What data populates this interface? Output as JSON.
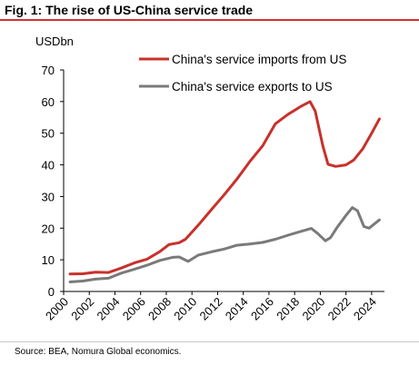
{
  "figure": {
    "title": "Fig. 1: The rise of US-China service trade",
    "source": "Source: BEA, Nomura Global economics."
  },
  "chart_data": {
    "type": "line",
    "title": "Fig. 1: The rise of US-China service trade",
    "ylabel": "USDbn",
    "xlabel": "",
    "ylim": [
      0,
      70
    ],
    "yticks": [
      0,
      10,
      20,
      30,
      40,
      50,
      60,
      70
    ],
    "xlim": [
      2000,
      2025
    ],
    "xticks": [
      2000,
      2002,
      2004,
      2006,
      2008,
      2010,
      2012,
      2014,
      2016,
      2018,
      2020,
      2022,
      2024
    ],
    "grid": false,
    "legend_position": "top",
    "series": [
      {
        "name": "China's service imports from US",
        "color": "#c8312a",
        "points": [
          [
            2000.5,
            5.5
          ],
          [
            2001.5,
            5.6
          ],
          [
            2002.5,
            6.1
          ],
          [
            2003.5,
            6.0
          ],
          [
            2004.5,
            7.4
          ],
          [
            2005.5,
            9.0
          ],
          [
            2006.5,
            10.2
          ],
          [
            2007.5,
            12.6
          ],
          [
            2008.2,
            14.8
          ],
          [
            2009,
            15.4
          ],
          [
            2009.5,
            16.5
          ],
          [
            2010.5,
            21.0
          ],
          [
            2011.5,
            25.8
          ],
          [
            2012.5,
            30.5
          ],
          [
            2013.5,
            35.5
          ],
          [
            2014.5,
            41.0
          ],
          [
            2015.5,
            46.0
          ],
          [
            2016.5,
            53.0
          ],
          [
            2017.5,
            56.0
          ],
          [
            2018.5,
            58.5
          ],
          [
            2019.2,
            60.0
          ],
          [
            2019.6,
            57.0
          ],
          [
            2020.2,
            46.0
          ],
          [
            2020.6,
            40.2
          ],
          [
            2021.2,
            39.5
          ],
          [
            2022,
            40.0
          ],
          [
            2022.6,
            41.5
          ],
          [
            2023.3,
            45.0
          ],
          [
            2024,
            50.0
          ],
          [
            2024.6,
            54.5
          ]
        ]
      },
      {
        "name": "China's service exports to US",
        "color": "#7a7a7a",
        "points": [
          [
            2000.5,
            3.0
          ],
          [
            2001.5,
            3.3
          ],
          [
            2002.5,
            3.9
          ],
          [
            2003.5,
            4.2
          ],
          [
            2004.5,
            5.8
          ],
          [
            2005.5,
            7.0
          ],
          [
            2006.5,
            8.3
          ],
          [
            2007.5,
            9.8
          ],
          [
            2008.5,
            10.8
          ],
          [
            2009,
            10.9
          ],
          [
            2009.7,
            9.5
          ],
          [
            2010.5,
            11.5
          ],
          [
            2011.5,
            12.5
          ],
          [
            2012.5,
            13.4
          ],
          [
            2013.5,
            14.6
          ],
          [
            2014.5,
            15.0
          ],
          [
            2015.5,
            15.5
          ],
          [
            2016.5,
            16.5
          ],
          [
            2017.5,
            17.8
          ],
          [
            2018.5,
            19.0
          ],
          [
            2019.3,
            19.9
          ],
          [
            2019.8,
            18.3
          ],
          [
            2020.4,
            16.0
          ],
          [
            2020.8,
            17.0
          ],
          [
            2021.3,
            20.2
          ],
          [
            2022.0,
            24.0
          ],
          [
            2022.5,
            26.5
          ],
          [
            2022.9,
            25.5
          ],
          [
            2023.4,
            20.5
          ],
          [
            2023.8,
            20.0
          ],
          [
            2024.6,
            22.6
          ]
        ]
      }
    ]
  }
}
